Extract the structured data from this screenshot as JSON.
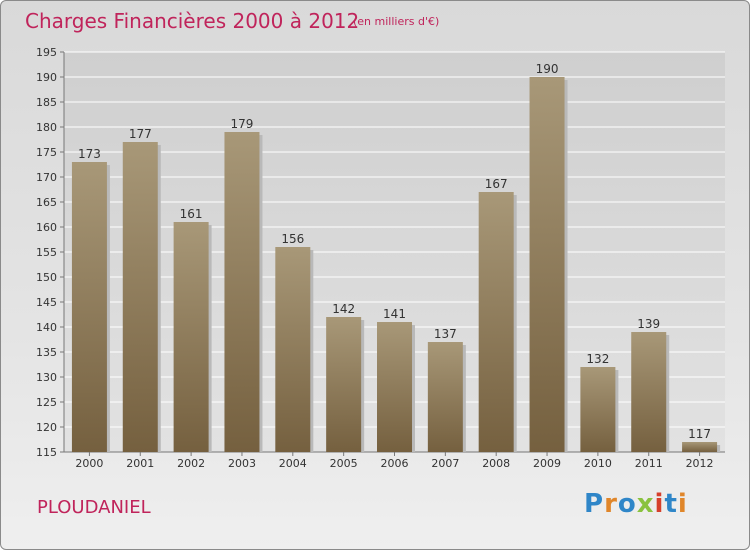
{
  "header": {
    "title": "Charges Financières 2000 à 2012",
    "subtitle": "(en milliers d'€)"
  },
  "footer": {
    "commune": "PLOUDANIEL",
    "logo_text": "Proxiti",
    "logo_letters": [
      {
        "ch": "P",
        "color": "#2f86c8"
      },
      {
        "ch": "r",
        "color": "#e0862a"
      },
      {
        "ch": "o",
        "color": "#2f86c8"
      },
      {
        "ch": "x",
        "color": "#8ac23f"
      },
      {
        "ch": "i",
        "color": "#d6402c"
      },
      {
        "ch": "t",
        "color": "#2f86c8"
      },
      {
        "ch": "i",
        "color": "#e0862a"
      }
    ]
  },
  "colors": {
    "accent": "#c0245b",
    "bar_top": "#a89878",
    "bar_bottom": "#75603f",
    "plot_top": "#cfcfcf",
    "plot_bottom": "#e2e2e2"
  },
  "chart_data": {
    "type": "bar",
    "title": "Charges Financières 2000 à 2012",
    "subtitle": "(en milliers d'€)",
    "categories": [
      "2000",
      "2001",
      "2002",
      "2003",
      "2004",
      "2005",
      "2006",
      "2007",
      "2008",
      "2009",
      "2010",
      "2011",
      "2012"
    ],
    "values": [
      173,
      177,
      161,
      179,
      156,
      142,
      141,
      137,
      167,
      190,
      132,
      139,
      117
    ],
    "ylim": [
      115,
      195
    ],
    "yticks": [
      115,
      120,
      125,
      130,
      135,
      140,
      145,
      150,
      155,
      160,
      165,
      170,
      175,
      180,
      185,
      190,
      195
    ],
    "grid": true,
    "data_labels": true
  }
}
